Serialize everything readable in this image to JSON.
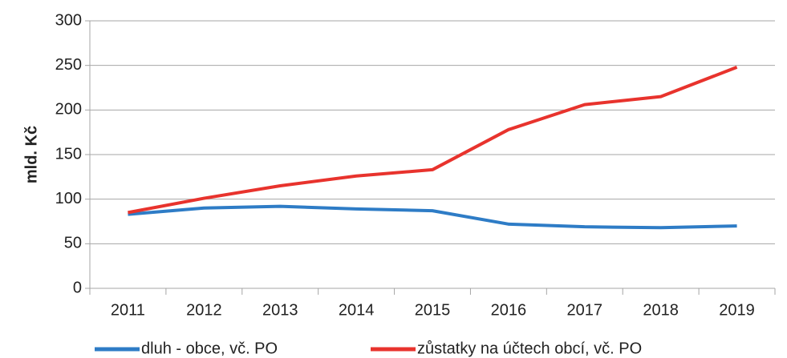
{
  "chart_data": {
    "type": "line",
    "y_label": "mld. Kč",
    "categories": [
      "2011",
      "2012",
      "2013",
      "2014",
      "2015",
      "2016",
      "2017",
      "2018",
      "2019"
    ],
    "series": [
      {
        "name": "dluh - obce, vč. PO",
        "color": "#2e7cc6",
        "values": [
          83,
          90,
          92,
          89,
          87,
          72,
          69,
          68,
          70
        ]
      },
      {
        "name": "zůstatky na účtech obcí, vč. PO",
        "color": "#e8332d",
        "values": [
          85,
          101,
          115,
          126,
          133,
          178,
          206,
          215,
          248
        ]
      }
    ],
    "ylim": [
      0,
      300
    ],
    "yticks": [
      0,
      50,
      100,
      150,
      200,
      250,
      300
    ],
    "grid": true,
    "legend": "bottom"
  }
}
